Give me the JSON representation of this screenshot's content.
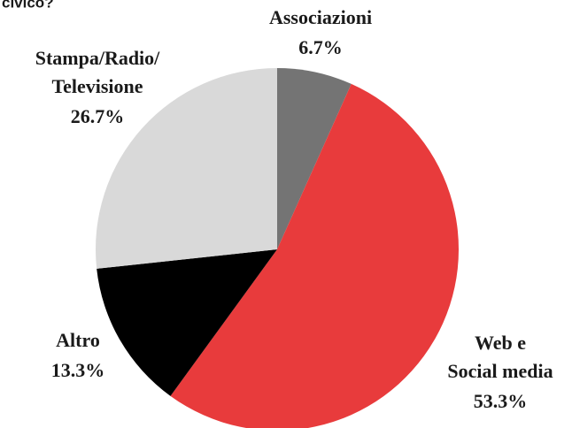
{
  "chart_data": {
    "type": "pie",
    "title": "civico?",
    "categories": [
      [
        "Associazioni"
      ],
      [
        "Web e",
        "Social media"
      ],
      [
        "Altro"
      ],
      [
        "Stampa/Radio/",
        "Televisione"
      ]
    ],
    "values": [
      6.7,
      53.3,
      13.3,
      26.7
    ],
    "value_labels": [
      "6.7%",
      "53.3%",
      "13.3%",
      "26.7%"
    ],
    "colors": [
      "#747474",
      "#e83b3c",
      "#000000",
      "#d9d9d9"
    ]
  }
}
